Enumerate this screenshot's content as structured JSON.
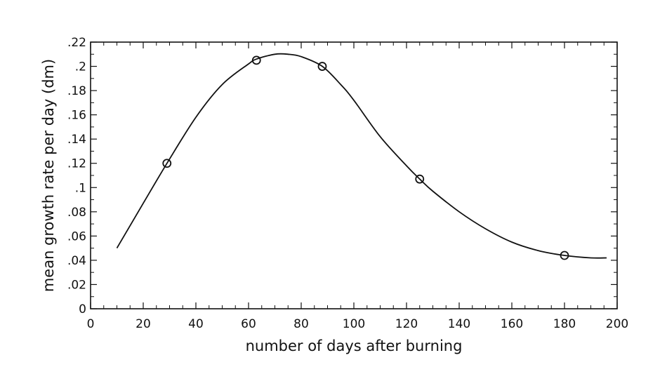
{
  "chart_data": {
    "type": "line",
    "title": "",
    "xlabel": "number of days after burning",
    "ylabel": "mean growth rate per day (dm)",
    "xlim": [
      0,
      200
    ],
    "ylim": [
      0,
      0.22
    ],
    "x_ticks": [
      "0",
      "20",
      "40",
      "60",
      "80",
      "100",
      "120",
      "140",
      "160",
      "180",
      "200"
    ],
    "y_ticks": [
      "0",
      ".02",
      ".04",
      ".06",
      ".08",
      ".1",
      ".12",
      ".14",
      ".16",
      ".18",
      ".2",
      ".22"
    ],
    "grid": false,
    "series": [
      {
        "type": "line",
        "x": [
          10,
          20,
          29,
          40,
          50,
          60,
          63,
          70,
          75,
          80,
          88,
          95,
          100,
          110,
          120,
          125,
          130,
          140,
          150,
          160,
          170,
          180,
          190,
          196
        ],
        "y": [
          0.05,
          0.087,
          0.12,
          0.158,
          0.185,
          0.202,
          0.206,
          0.21,
          0.21,
          0.208,
          0.2,
          0.185,
          0.172,
          0.142,
          0.118,
          0.107,
          0.097,
          0.08,
          0.066,
          0.055,
          0.048,
          0.044,
          0.042,
          0.042
        ]
      },
      {
        "type": "scatter",
        "x": [
          29,
          63,
          88,
          125,
          180
        ],
        "y": [
          0.12,
          0.205,
          0.2,
          0.107,
          0.044
        ]
      }
    ]
  }
}
